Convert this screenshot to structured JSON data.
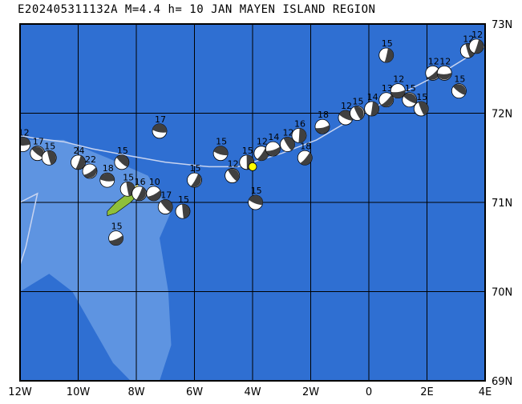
{
  "title": "E202405311132A M=4.4 h= 10 JAN MAYEN ISLAND REGION",
  "map": {
    "lon_range": [
      -12,
      4
    ],
    "lat_range": [
      69,
      73
    ],
    "lon_ticks": [
      {
        "value": -12,
        "label": "12W"
      },
      {
        "value": -10,
        "label": "10W"
      },
      {
        "value": -8,
        "label": "8W"
      },
      {
        "value": -6,
        "label": "6W"
      },
      {
        "value": -4,
        "label": "4W"
      },
      {
        "value": -2,
        "label": "2W"
      },
      {
        "value": 0,
        "label": "0"
      },
      {
        "value": 2,
        "label": "2E"
      },
      {
        "value": 4,
        "label": "4E"
      }
    ],
    "lat_ticks": [
      {
        "value": 73,
        "label": "73N"
      },
      {
        "value": 72,
        "label": "72N"
      },
      {
        "value": 71,
        "label": "71N"
      },
      {
        "value": 70,
        "label": "70N"
      },
      {
        "value": 69,
        "label": "69N"
      }
    ],
    "colors": {
      "ocean_deep": "#2f6fd2",
      "ocean_shallow": "#6fa0e6",
      "grid": "#000000",
      "plate_boundary": "#c8d4f0",
      "land": "#8fbf3a",
      "ice": "#f0e060",
      "epicenter": "#ffff00",
      "beachball_dark": "#404040",
      "beachball_light": "#ffffff"
    },
    "epicenter": {
      "lon": -4.0,
      "lat": 71.4
    },
    "events": [
      {
        "lon": -11.9,
        "lat": 71.65,
        "label": "12"
      },
      {
        "lon": -11.4,
        "lat": 71.55,
        "label": "17"
      },
      {
        "lon": -11.0,
        "lat": 71.5,
        "label": "15"
      },
      {
        "lon": -10.0,
        "lat": 71.45,
        "label": "24"
      },
      {
        "lon": -9.6,
        "lat": 71.35,
        "label": "22"
      },
      {
        "lon": -9.0,
        "lat": 71.25,
        "label": "18"
      },
      {
        "lon": -8.5,
        "lat": 71.45,
        "label": "15"
      },
      {
        "lon": -8.3,
        "lat": 71.15,
        "label": "15"
      },
      {
        "lon": -7.9,
        "lat": 71.1,
        "label": "16"
      },
      {
        "lon": -7.4,
        "lat": 71.1,
        "label": "10"
      },
      {
        "lon": -7.2,
        "lat": 71.8,
        "label": "17"
      },
      {
        "lon": -7.0,
        "lat": 70.95,
        "label": "17"
      },
      {
        "lon": -6.4,
        "lat": 70.9,
        "label": "15"
      },
      {
        "lon": -6.0,
        "lat": 71.25,
        "label": "15"
      },
      {
        "lon": -8.7,
        "lat": 70.6,
        "label": "15"
      },
      {
        "lon": -5.1,
        "lat": 71.55,
        "label": "15"
      },
      {
        "lon": -4.7,
        "lat": 71.3,
        "label": "12"
      },
      {
        "lon": -4.2,
        "lat": 71.45,
        "label": "15"
      },
      {
        "lon": -3.7,
        "lat": 71.55,
        "label": "12"
      },
      {
        "lon": -3.3,
        "lat": 71.6,
        "label": "14"
      },
      {
        "lon": -3.9,
        "lat": 71.0,
        "label": "15"
      },
      {
        "lon": -2.8,
        "lat": 71.65,
        "label": "12"
      },
      {
        "lon": -2.4,
        "lat": 71.75,
        "label": "16"
      },
      {
        "lon": -2.2,
        "lat": 71.5,
        "label": "18"
      },
      {
        "lon": -1.6,
        "lat": 71.85,
        "label": "18"
      },
      {
        "lon": -0.8,
        "lat": 71.95,
        "label": "12"
      },
      {
        "lon": -0.4,
        "lat": 72.0,
        "label": "15"
      },
      {
        "lon": 0.1,
        "lat": 72.05,
        "label": "14"
      },
      {
        "lon": 0.6,
        "lat": 72.15,
        "label": "13"
      },
      {
        "lon": 1.0,
        "lat": 72.25,
        "label": "12"
      },
      {
        "lon": 1.4,
        "lat": 72.15,
        "label": "15"
      },
      {
        "lon": 1.8,
        "lat": 72.05,
        "label": "15"
      },
      {
        "lon": 0.6,
        "lat": 72.65,
        "label": "15"
      },
      {
        "lon": 2.2,
        "lat": 72.45,
        "label": "12"
      },
      {
        "lon": 2.6,
        "lat": 72.45,
        "label": "12"
      },
      {
        "lon": 3.1,
        "lat": 72.25,
        "label": "15"
      },
      {
        "lon": 3.4,
        "lat": 72.7,
        "label": "12"
      },
      {
        "lon": 3.7,
        "lat": 72.75,
        "label": "12"
      }
    ]
  }
}
